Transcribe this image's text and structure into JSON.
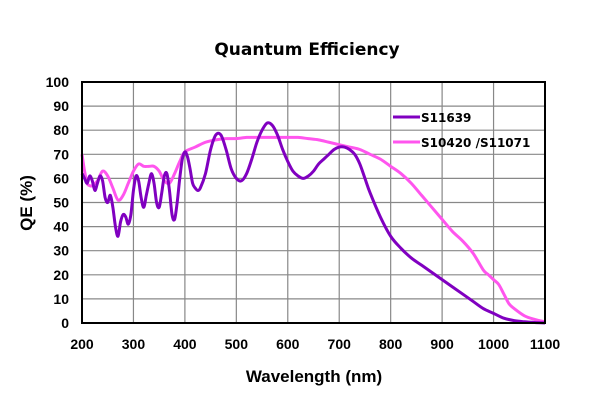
{
  "chart_data": {
    "type": "line",
    "title": "Quantum Efficiency",
    "xlabel": "Wavelength (nm)",
    "ylabel": "QE (%)",
    "xlim": [
      200,
      1100
    ],
    "ylim": [
      0,
      100
    ],
    "xticks": [
      200,
      300,
      400,
      500,
      600,
      700,
      800,
      900,
      1000,
      1100
    ],
    "yticks": [
      0,
      10,
      20,
      30,
      40,
      50,
      60,
      70,
      80,
      90,
      100
    ],
    "grid": true,
    "legend_position": "top-right",
    "series": [
      {
        "name": "S11639",
        "color": "#8000c0",
        "x": [
          200,
          205,
          210,
          215,
          220,
          225,
          230,
          235,
          240,
          245,
          250,
          255,
          260,
          265,
          270,
          275,
          280,
          285,
          290,
          295,
          300,
          305,
          310,
          315,
          320,
          325,
          330,
          335,
          340,
          345,
          350,
          355,
          360,
          365,
          370,
          375,
          380,
          385,
          390,
          395,
          400,
          405,
          410,
          415,
          420,
          425,
          430,
          440,
          450,
          460,
          470,
          480,
          490,
          500,
          510,
          520,
          530,
          540,
          550,
          560,
          570,
          580,
          590,
          600,
          610,
          620,
          630,
          640,
          650,
          660,
          670,
          680,
          690,
          700,
          710,
          720,
          730,
          740,
          750,
          760,
          780,
          800,
          820,
          840,
          860,
          880,
          900,
          920,
          940,
          960,
          980,
          1000,
          1020,
          1040,
          1060,
          1080,
          1100
        ],
        "y": [
          62,
          60,
          58,
          61,
          59,
          55,
          58,
          61,
          59,
          52,
          50,
          53,
          48,
          40,
          36,
          42,
          45,
          44,
          41,
          45,
          55,
          61,
          59,
          52,
          48,
          53,
          58,
          62,
          58,
          50,
          48,
          54,
          61,
          62,
          55,
          45,
          43,
          50,
          60,
          68,
          71,
          69,
          64,
          58,
          56,
          55,
          56,
          62,
          72,
          78,
          78,
          72,
          64,
          60,
          59,
          62,
          68,
          75,
          80,
          83,
          82,
          78,
          72,
          67,
          63,
          61,
          60,
          61,
          63,
          66,
          68,
          70,
          72,
          73,
          73,
          72,
          70,
          66,
          60,
          54,
          44,
          36,
          31,
          27,
          24,
          21,
          18,
          15,
          12,
          9,
          6,
          4,
          2,
          1,
          0.5,
          0.2,
          0
        ]
      },
      {
        "name": "S10420 /S11071",
        "color": "#ff55ee",
        "x": [
          200,
          205,
          210,
          215,
          220,
          230,
          240,
          250,
          260,
          270,
          280,
          290,
          300,
          310,
          320,
          330,
          340,
          350,
          360,
          370,
          380,
          390,
          400,
          420,
          440,
          460,
          480,
          500,
          520,
          540,
          560,
          580,
          600,
          620,
          640,
          660,
          680,
          700,
          720,
          740,
          760,
          780,
          800,
          820,
          840,
          860,
          880,
          900,
          920,
          940,
          960,
          980,
          990,
          1000,
          1010,
          1020,
          1030,
          1040,
          1060,
          1080,
          1100
        ],
        "y": [
          70,
          63,
          58,
          57,
          57,
          59,
          63,
          61,
          56,
          51,
          53,
          58,
          63,
          66,
          65,
          65,
          65,
          63,
          59,
          58,
          62,
          67,
          71,
          73,
          75,
          76,
          76.5,
          76.5,
          77,
          77,
          77,
          77,
          77,
          77,
          76.5,
          76,
          75,
          74,
          73,
          72,
          70,
          68,
          65,
          62,
          58,
          53,
          48,
          43,
          38,
          34,
          29,
          22,
          20,
          18,
          16,
          12,
          8,
          6,
          3,
          1.5,
          0.5
        ]
      }
    ]
  }
}
